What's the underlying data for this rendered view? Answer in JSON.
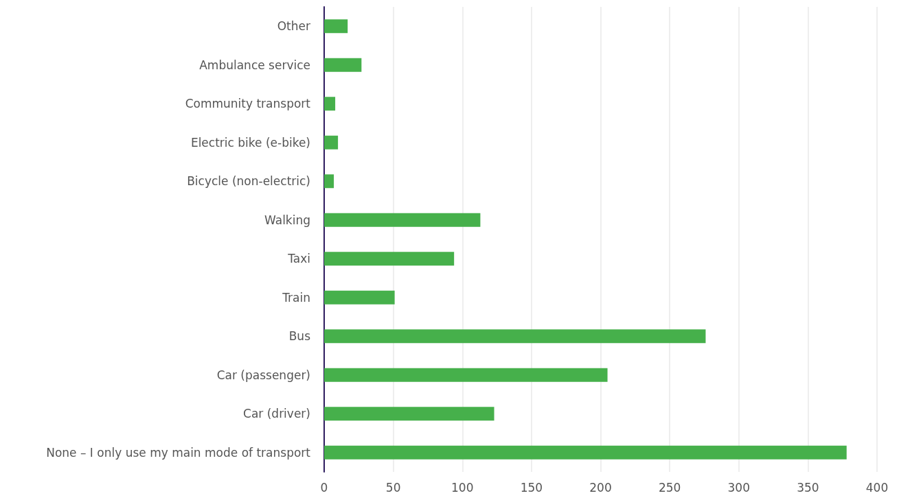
{
  "chart_data": {
    "type": "bar",
    "orientation": "horizontal",
    "categories": [
      "Other",
      "Ambulance service",
      "Community transport",
      "Electric bike (e-bike)",
      "Bicycle (non-electric)",
      "Walking",
      "Taxi",
      "Train",
      "Bus",
      "Car (passenger)",
      "Car (driver)",
      "None – I only use my main mode of transport"
    ],
    "series": [
      {
        "color": "#46b04b",
        "values": [
          17,
          27,
          8,
          10,
          7,
          113,
          94,
          51,
          276,
          205,
          123,
          378
        ]
      }
    ],
    "xlim": [
      0,
      400
    ],
    "xticks": [
      0,
      50,
      100,
      150,
      200,
      250,
      300,
      350,
      400
    ],
    "grid": "x"
  }
}
